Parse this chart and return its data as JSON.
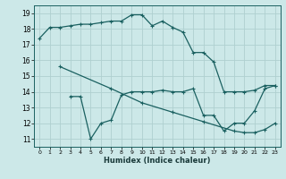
{
  "xlabel": "Humidex (Indice chaleur)",
  "background_color": "#cce8e8",
  "grid_color": "#afd0d0",
  "line_color": "#1a6060",
  "xlim": [
    -0.5,
    23.5
  ],
  "ylim": [
    10.5,
    19.5
  ],
  "yticks": [
    11,
    12,
    13,
    14,
    15,
    16,
    17,
    18,
    19
  ],
  "xticks": [
    0,
    1,
    2,
    3,
    4,
    5,
    6,
    7,
    8,
    9,
    10,
    11,
    12,
    13,
    14,
    15,
    16,
    17,
    18,
    19,
    20,
    21,
    22,
    23
  ],
  "series1_x": [
    0,
    1,
    2,
    3,
    4,
    5,
    6,
    7,
    8,
    9,
    10,
    11,
    12,
    13,
    14,
    15,
    16,
    17,
    18,
    19,
    20,
    21,
    22,
    23
  ],
  "series1_y": [
    17.4,
    18.1,
    18.1,
    18.2,
    18.3,
    18.3,
    18.4,
    18.5,
    18.5,
    18.9,
    18.9,
    18.2,
    18.5,
    18.1,
    17.8,
    16.5,
    16.5,
    15.9,
    14.0,
    14.0,
    14.0,
    14.1,
    14.4,
    14.4
  ],
  "series2_x": [
    2,
    7,
    10,
    13,
    16,
    19,
    20,
    21,
    22,
    23
  ],
  "series2_y": [
    15.6,
    14.2,
    13.3,
    12.7,
    12.1,
    11.5,
    11.4,
    11.4,
    11.6,
    12.0
  ],
  "series3_x": [
    3,
    4,
    5,
    6,
    7,
    8,
    9,
    10,
    11,
    12,
    13,
    14,
    15,
    16,
    17,
    18,
    19,
    20,
    21,
    22,
    23
  ],
  "series3_y": [
    13.7,
    13.7,
    11.0,
    12.0,
    12.2,
    13.8,
    14.0,
    14.0,
    14.0,
    14.1,
    14.0,
    14.0,
    14.2,
    12.5,
    12.5,
    11.5,
    12.0,
    12.0,
    12.8,
    14.2,
    14.4
  ]
}
